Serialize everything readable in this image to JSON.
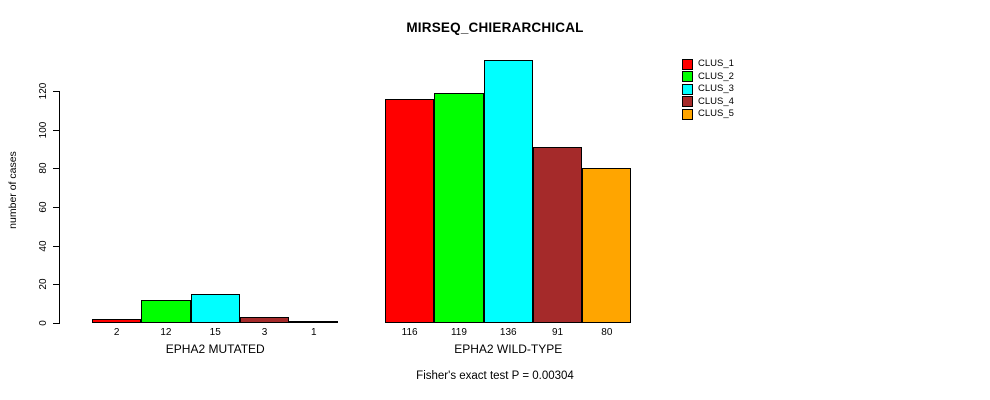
{
  "chart_data": {
    "type": "bar",
    "title": "MIRSEQ_CHIERARCHICAL",
    "ylabel": "number of cases",
    "xlabel": "",
    "footer": "Fisher's exact test P = 0.00304",
    "categories": [
      "EPHA2 MUTATED",
      "EPHA2 WILD-TYPE"
    ],
    "series": [
      {
        "name": "CLUS_1",
        "color": "#FF0000",
        "values": [
          2,
          116
        ]
      },
      {
        "name": "CLUS_2",
        "color": "#00FF00",
        "values": [
          12,
          119
        ]
      },
      {
        "name": "CLUS_3",
        "color": "#00FFFF",
        "values": [
          15,
          136
        ]
      },
      {
        "name": "CLUS_4",
        "color": "#A52A2A",
        "values": [
          3,
          91
        ]
      },
      {
        "name": "CLUS_5",
        "color": "#FFA500",
        "values": [
          1,
          80
        ]
      }
    ],
    "bar_value_labels": [
      [
        "2",
        "12",
        "15",
        "3",
        "1"
      ],
      [
        "116",
        "119",
        "136",
        "91",
        "80"
      ]
    ],
    "y_ticks": [
      0,
      20,
      40,
      60,
      80,
      100,
      120
    ],
    "ylim": [
      0,
      140
    ],
    "grid": false,
    "legend_position": "top-right",
    "bar_border_color": "#000000",
    "text_color": "#000000",
    "background_color": "#FFFFFF"
  }
}
